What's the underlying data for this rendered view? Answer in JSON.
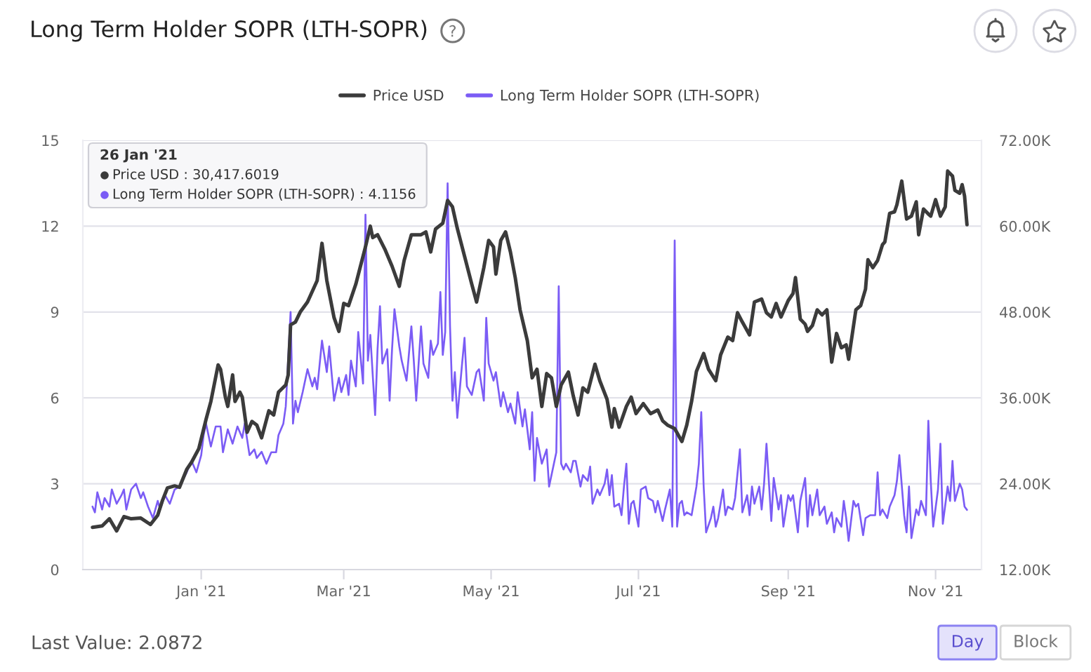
{
  "chart_data": {
    "type": "line",
    "title": "Long Term Holder SOPR (LTH-SOPR)",
    "annotations": [
      "26 Jan '21",
      "Price USD : 30,417.6019",
      "Long Term Holder SOPR (LTH-SOPR) : 4.1156",
      "Last Value: 2.0872",
      "Day",
      "Block"
    ],
    "series": [
      {
        "name": "Price USD",
        "color": "#3b3b3b",
        "axis": "y2",
        "x": [
          "2020-11-17",
          "2020-11-21",
          "2020-11-24",
          "2020-11-27",
          "2020-11-30",
          "2020-12-03",
          "2020-12-07",
          "2020-12-11",
          "2020-12-14",
          "2020-12-16",
          "2020-12-18",
          "2020-12-21",
          "2020-12-23",
          "2020-12-26",
          "2020-12-28",
          "2020-12-31",
          "2021-01-03",
          "2021-01-05",
          "2021-01-08",
          "2021-01-09",
          "2021-01-11",
          "2021-01-12",
          "2021-01-14",
          "2021-01-15",
          "2021-01-17",
          "2021-01-18",
          "2021-01-20",
          "2021-01-22",
          "2021-01-24",
          "2021-01-26",
          "2021-01-29",
          "2021-01-31",
          "2021-02-02",
          "2021-02-05",
          "2021-02-06",
          "2021-02-07",
          "2021-02-09",
          "2021-02-11",
          "2021-02-14",
          "2021-02-18",
          "2021-02-20",
          "2021-02-22",
          "2021-02-25",
          "2021-02-27",
          "2021-03-01",
          "2021-03-03",
          "2021-03-06",
          "2021-03-10",
          "2021-03-12",
          "2021-03-13",
          "2021-03-15",
          "2021-03-18",
          "2021-03-21",
          "2021-03-24",
          "2021-03-26",
          "2021-03-29",
          "2021-04-02",
          "2021-04-04",
          "2021-04-06",
          "2021-04-08",
          "2021-04-11",
          "2021-04-13",
          "2021-04-15",
          "2021-04-17",
          "2021-04-20",
          "2021-04-23",
          "2021-04-25",
          "2021-04-28",
          "2021-04-30",
          "2021-05-02",
          "2021-05-03",
          "2021-05-05",
          "2021-05-07",
          "2021-05-09",
          "2021-05-11",
          "2021-05-13",
          "2021-05-16",
          "2021-05-18",
          "2021-05-20",
          "2021-05-22",
          "2021-05-24",
          "2021-05-26",
          "2021-05-28",
          "2021-05-30",
          "2021-06-02",
          "2021-06-04",
          "2021-06-06",
          "2021-06-08",
          "2021-06-10",
          "2021-06-13",
          "2021-06-15",
          "2021-06-18",
          "2021-06-20",
          "2021-06-21",
          "2021-06-23",
          "2021-06-26",
          "2021-06-28",
          "2021-06-30",
          "2021-07-03",
          "2021-07-06",
          "2021-07-09",
          "2021-07-11",
          "2021-07-13",
          "2021-07-16",
          "2021-07-19",
          "2021-07-21",
          "2021-07-23",
          "2021-07-25",
          "2021-07-28",
          "2021-07-30",
          "2021-08-02",
          "2021-08-04",
          "2021-08-07",
          "2021-08-09",
          "2021-08-11",
          "2021-08-13",
          "2021-08-16",
          "2021-08-18",
          "2021-08-21",
          "2021-08-23",
          "2021-08-25",
          "2021-08-27",
          "2021-08-29",
          "2021-09-01",
          "2021-09-03",
          "2021-09-04",
          "2021-09-06",
          "2021-09-08",
          "2021-09-09",
          "2021-09-11",
          "2021-09-13",
          "2021-09-15",
          "2021-09-17",
          "2021-09-19",
          "2021-09-21",
          "2021-09-23",
          "2021-09-25",
          "2021-09-26",
          "2021-09-29",
          "2021-10-01",
          "2021-10-03",
          "2021-10-04",
          "2021-10-06",
          "2021-10-08",
          "2021-10-10",
          "2021-10-11",
          "2021-10-13",
          "2021-10-15",
          "2021-10-16",
          "2021-10-18",
          "2021-10-20",
          "2021-10-22",
          "2021-10-24",
          "2021-10-25",
          "2021-10-27",
          "2021-10-29",
          "2021-10-30",
          "2021-11-01",
          "2021-11-03",
          "2021-11-05",
          "2021-11-06",
          "2021-11-08",
          "2021-11-09",
          "2021-11-11",
          "2021-11-12",
          "2021-11-13",
          "2021-11-14"
        ],
        "values": [
          17900,
          18100,
          19100,
          17400,
          19400,
          19100,
          19200,
          18300,
          19600,
          21700,
          23400,
          23700,
          23500,
          26000,
          27000,
          28900,
          33000,
          35500,
          40600,
          40000,
          36100,
          34800,
          39200,
          35500,
          36800,
          36100,
          31200,
          32700,
          32200,
          30417.6019,
          34200,
          33600,
          36800,
          37800,
          39200,
          46200,
          46600,
          48000,
          49400,
          52400,
          57600,
          52400,
          47200,
          45300,
          49200,
          48900,
          51900,
          57100,
          60000,
          58400,
          58800,
          56800,
          54400,
          51600,
          55200,
          58800,
          58800,
          59200,
          56400,
          59600,
          60400,
          63600,
          62700,
          59700,
          55800,
          51900,
          49400,
          54200,
          58000,
          57100,
          53300,
          58000,
          59200,
          56400,
          52800,
          48300,
          44000,
          38800,
          40000,
          34800,
          39400,
          38800,
          34800,
          37800,
          39600,
          36300,
          33600,
          37400,
          36800,
          40700,
          38400,
          35800,
          31900,
          34500,
          31900,
          34800,
          36100,
          33800,
          35200,
          33800,
          34300,
          32800,
          32200,
          31700,
          29900,
          32200,
          35500,
          39700,
          42200,
          40000,
          38400,
          42000,
          44500,
          44000,
          47900,
          46600,
          44800,
          49400,
          49800,
          47900,
          47300,
          49200,
          47300,
          49600,
          50600,
          52800,
          47000,
          46300,
          45300,
          46100,
          48300,
          47600,
          48300,
          41000,
          45000,
          43000,
          43400,
          41400,
          48300,
          48900,
          51200,
          55300,
          54200,
          55200,
          57400,
          57800,
          61800,
          62000,
          63000,
          66300,
          61000,
          61400,
          63400,
          58800,
          62400,
          61700,
          61400,
          63700,
          61400,
          62700,
          67700,
          67000,
          65000,
          64600,
          65800,
          64200,
          60200
        ]
      },
      {
        "name": "Long Term Holder SOPR (LTH-SOPR)",
        "color": "#7b5cf5",
        "axis": "y",
        "x": [
          "2020-11-17",
          "2020-11-18",
          "2020-11-19",
          "2020-11-21",
          "2020-11-22",
          "2020-11-24",
          "2020-11-25",
          "2020-11-27",
          "2020-11-29",
          "2020-11-30",
          "2020-12-01",
          "2020-12-03",
          "2020-12-05",
          "2020-12-07",
          "2020-12-08",
          "2020-12-10",
          "2020-12-12",
          "2020-12-14",
          "2020-12-15",
          "2020-12-17",
          "2020-12-19",
          "2020-12-21",
          "2020-12-23",
          "2020-12-26",
          "2020-12-28",
          "2020-12-30",
          "2021-01-01",
          "2021-01-02",
          "2021-01-03",
          "2021-01-05",
          "2021-01-07",
          "2021-01-09",
          "2021-01-10",
          "2021-01-12",
          "2021-01-14",
          "2021-01-16",
          "2021-01-18",
          "2021-01-19",
          "2021-01-21",
          "2021-01-23",
          "2021-01-24",
          "2021-01-26",
          "2021-01-28",
          "2021-01-30",
          "2021-02-01",
          "2021-02-02",
          "2021-02-04",
          "2021-02-05",
          "2021-02-07",
          "2021-02-08",
          "2021-02-09",
          "2021-02-10",
          "2021-02-12",
          "2021-02-14",
          "2021-02-16",
          "2021-02-17",
          "2021-02-18",
          "2021-02-20",
          "2021-02-22",
          "2021-02-23",
          "2021-02-25",
          "2021-02-27",
          "2021-02-28",
          "2021-03-02",
          "2021-03-03",
          "2021-03-04",
          "2021-03-06",
          "2021-03-07",
          "2021-03-09",
          "2021-03-10",
          "2021-03-11",
          "2021-03-12",
          "2021-03-14",
          "2021-03-15",
          "2021-03-16",
          "2021-03-17",
          "2021-03-19",
          "2021-03-20",
          "2021-03-21",
          "2021-03-22",
          "2021-03-24",
          "2021-03-25",
          "2021-03-27",
          "2021-03-29",
          "2021-03-30",
          "2021-03-31",
          "2021-04-02",
          "2021-04-03",
          "2021-04-05",
          "2021-04-06",
          "2021-04-07",
          "2021-04-09",
          "2021-04-10",
          "2021-04-11",
          "2021-04-12",
          "2021-04-13",
          "2021-04-14",
          "2021-04-15",
          "2021-04-16",
          "2021-04-17",
          "2021-04-19",
          "2021-04-20",
          "2021-04-21",
          "2021-04-23",
          "2021-04-25",
          "2021-04-26",
          "2021-04-28",
          "2021-04-29",
          "2021-04-30",
          "2021-05-02",
          "2021-05-03",
          "2021-05-05",
          "2021-05-06",
          "2021-05-08",
          "2021-05-09",
          "2021-05-11",
          "2021-05-12",
          "2021-05-14",
          "2021-05-15",
          "2021-05-17",
          "2021-05-18",
          "2021-05-19",
          "2021-05-20",
          "2021-05-22",
          "2021-05-24",
          "2021-05-25",
          "2021-05-27",
          "2021-05-28",
          "2021-05-29",
          "2021-05-30",
          "2021-05-31",
          "2021-06-01",
          "2021-06-03",
          "2021-06-04",
          "2021-06-05",
          "2021-06-07",
          "2021-06-08",
          "2021-06-10",
          "2021-06-11",
          "2021-06-12",
          "2021-06-14",
          "2021-06-15",
          "2021-06-17",
          "2021-06-18",
          "2021-06-19",
          "2021-06-20",
          "2021-06-21",
          "2021-06-23",
          "2021-06-24",
          "2021-06-25",
          "2021-06-26",
          "2021-06-27",
          "2021-06-28",
          "2021-06-29",
          "2021-07-01",
          "2021-07-02",
          "2021-07-04",
          "2021-07-05",
          "2021-07-07",
          "2021-07-08",
          "2021-07-09",
          "2021-07-11",
          "2021-07-12",
          "2021-07-14",
          "2021-07-15",
          "2021-07-16",
          "2021-07-17",
          "2021-07-18",
          "2021-07-19",
          "2021-07-20",
          "2021-07-21",
          "2021-07-23",
          "2021-07-25",
          "2021-07-26",
          "2021-07-27",
          "2021-07-28",
          "2021-07-29",
          "2021-07-31",
          "2021-08-01",
          "2021-08-02",
          "2021-08-03",
          "2021-08-05",
          "2021-08-06",
          "2021-08-07",
          "2021-08-09",
          "2021-08-10",
          "2021-08-12",
          "2021-08-13",
          "2021-08-15",
          "2021-08-16",
          "2021-08-17",
          "2021-08-18",
          "2021-08-20",
          "2021-08-21",
          "2021-08-22",
          "2021-08-23",
          "2021-08-25",
          "2021-08-26",
          "2021-08-28",
          "2021-08-29",
          "2021-08-30",
          "2021-09-01",
          "2021-09-02",
          "2021-09-03",
          "2021-09-05",
          "2021-09-06",
          "2021-09-08",
          "2021-09-09",
          "2021-09-10",
          "2021-09-11",
          "2021-09-13",
          "2021-09-14",
          "2021-09-16",
          "2021-09-17",
          "2021-09-19",
          "2021-09-20",
          "2021-09-21",
          "2021-09-23",
          "2021-09-24",
          "2021-09-25",
          "2021-09-26",
          "2021-09-28",
          "2021-09-29",
          "2021-09-30",
          "2021-10-02",
          "2021-10-03",
          "2021-10-05",
          "2021-10-07",
          "2021-10-08",
          "2021-10-09",
          "2021-10-10",
          "2021-10-12",
          "2021-10-13",
          "2021-10-15",
          "2021-10-16",
          "2021-10-17",
          "2021-10-19",
          "2021-10-20",
          "2021-10-21",
          "2021-10-22",
          "2021-10-24",
          "2021-10-25",
          "2021-10-26",
          "2021-10-28",
          "2021-10-29",
          "2021-10-30",
          "2021-10-31",
          "2021-11-02",
          "2021-11-03",
          "2021-11-04",
          "2021-11-06",
          "2021-11-07",
          "2021-11-08",
          "2021-11-09",
          "2021-11-11",
          "2021-11-12",
          "2021-11-13",
          "2021-11-14"
        ],
        "values": [
          2.2,
          2.0,
          2.7,
          2.1,
          2.5,
          2.2,
          2.8,
          2.3,
          2.6,
          2.8,
          2.1,
          2.8,
          3.0,
          2.5,
          2.7,
          2.2,
          1.8,
          2.4,
          2.1,
          2.6,
          2.3,
          2.8,
          2.9,
          3.4,
          3.8,
          3.4,
          4.0,
          4.7,
          5.1,
          4.3,
          5.0,
          5.0,
          4.1,
          4.9,
          4.4,
          5.0,
          4.6,
          5.1,
          4.0,
          4.2,
          3.9,
          4.1156,
          3.7,
          4.1,
          4.1,
          4.7,
          5.1,
          5.7,
          9.0,
          5.1,
          5.9,
          5.5,
          6.2,
          7.0,
          6.4,
          6.7,
          6.3,
          8.0,
          6.9,
          7.8,
          5.9,
          6.7,
          6.2,
          6.8,
          6.1,
          7.3,
          6.4,
          8.3,
          6.5,
          12.4,
          7.3,
          8.2,
          5.4,
          7.7,
          9.2,
          7.2,
          7.7,
          5.9,
          7.7,
          9.1,
          7.8,
          7.3,
          6.6,
          8.5,
          7.3,
          5.9,
          8.5,
          7.2,
          6.7,
          8.0,
          7.5,
          7.9,
          9.7,
          7.5,
          8.3,
          13.5,
          8.5,
          5.9,
          6.9,
          5.3,
          7.2,
          8.1,
          6.4,
          6.1,
          6.9,
          7.0,
          5.9,
          8.8,
          7.2,
          6.6,
          6.9,
          5.7,
          6.2,
          5.5,
          5.8,
          5.1,
          6.2,
          5.0,
          5.6,
          4.2,
          5.5,
          3.1,
          4.6,
          3.7,
          4.2,
          2.9,
          3.7,
          4.1,
          9.9,
          3.7,
          3.5,
          3.7,
          3.4,
          3.8,
          3.8,
          2.9,
          3.3,
          3.1,
          3.6,
          2.3,
          2.8,
          2.6,
          3.0,
          3.5,
          2.6,
          3.3,
          2.2,
          2.3,
          1.9,
          2.9,
          3.7,
          1.6,
          2.3,
          2.4,
          1.5,
          2.8,
          2.9,
          2.5,
          2.4,
          2.0,
          2.4,
          1.7,
          2.1,
          2.8,
          1.5,
          11.5,
          1.5,
          2.3,
          2.4,
          1.9,
          2.0,
          1.9,
          2.9,
          3.7,
          5.5,
          2.9,
          1.3,
          1.8,
          2.2,
          1.5,
          1.8,
          2.8,
          1.9,
          2.2,
          2.1,
          2.5,
          4.2,
          2.0,
          2.6,
          1.9,
          2.9,
          2.3,
          2.9,
          2.1,
          3.0,
          4.4,
          1.7,
          3.2,
          2.1,
          2.6,
          1.5,
          2.6,
          2.4,
          2.6,
          1.3,
          2.4,
          3.2,
          1.5,
          2.6,
          1.9,
          2.8,
          1.9,
          2.2,
          1.6,
          2.0,
          1.3,
          1.8,
          1.5,
          2.4,
          1.8,
          1.0,
          2.4,
          2.2,
          2.3,
          1.2,
          1.8,
          1.9,
          1.9,
          3.4,
          1.9,
          2.1,
          1.8,
          2.2,
          2.6,
          3.1,
          4.0,
          1.9,
          1.3,
          2.9,
          1.1,
          2.1,
          1.9,
          2.4,
          1.9,
          5.2,
          3.1,
          1.5,
          2.8,
          4.4,
          1.6,
          2.9,
          2.4,
          3.8,
          2.4,
          3.0,
          2.8,
          2.2,
          2.0872
        ]
      }
    ],
    "xlim": [
      "2020-11-13",
      "2021-11-20"
    ],
    "xticks": [
      {
        "value": "2021-01-01",
        "label": "Jan '21"
      },
      {
        "value": "2021-03-01",
        "label": "Mar '21"
      },
      {
        "value": "2021-05-01",
        "label": "May '21"
      },
      {
        "value": "2021-07-01",
        "label": "Jul '21"
      },
      {
        "value": "2021-09-01",
        "label": "Sep '21"
      },
      {
        "value": "2021-11-01",
        "label": "Nov '21"
      }
    ],
    "ylim": [
      0,
      15
    ],
    "yticks": [
      0,
      3,
      6,
      9,
      12,
      15
    ],
    "y2lim": [
      12000,
      72000
    ],
    "y2ticks": [
      {
        "value": 12000,
        "label": "12.00K"
      },
      {
        "value": 24000,
        "label": "24.00K"
      },
      {
        "value": 36000,
        "label": "36.00K"
      },
      {
        "value": 48000,
        "label": "48.00K"
      },
      {
        "value": 60000,
        "label": "60.00K"
      },
      {
        "value": 72000,
        "label": "72.00K"
      }
    ],
    "grid": "y",
    "legend": "top"
  }
}
